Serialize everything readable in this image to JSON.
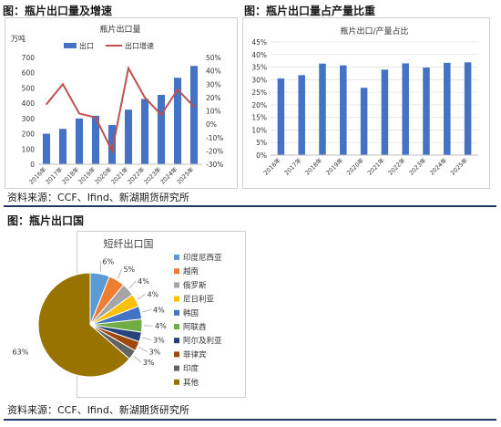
{
  "figures": [
    {
      "title": "图：瓶片出口量及增速",
      "source": "资料来源：CCF、Ifind、新湖期货研究所"
    },
    {
      "title": "图：瓶片出口量占产量比重"
    },
    {
      "title": "图：瓶片出口国",
      "source": "资料来源：CCF、Ifind、新湖期货研究所"
    }
  ],
  "colors": {
    "bar": "#4472c4",
    "line": "#c0504d",
    "rule": "#1f3864"
  },
  "chart_data": [
    {
      "type": "bar",
      "title": "瓶片出口量",
      "ylabel": "万吨",
      "categories": [
        "2016年",
        "2017年",
        "2018年",
        "2019年",
        "2020年",
        "2021年",
        "2022年",
        "2023年",
        "2024年",
        "2025年"
      ],
      "ylim": [
        0,
        700
      ],
      "yticks": [
        "0",
        "100",
        "200",
        "300",
        "400",
        "500",
        "600",
        "700"
      ],
      "y2lim": [
        -30,
        50
      ],
      "y2ticks": [
        "-30%",
        "-20%",
        "-10%",
        "0%",
        "10%",
        "20%",
        "30%",
        "40%",
        "50%"
      ],
      "legend_position": "top",
      "grid": false,
      "series": [
        {
          "name": "出口",
          "kind": "bar",
          "axis": "left",
          "values": [
            200,
            232,
            300,
            318,
            257,
            358,
            428,
            455,
            567,
            645
          ]
        },
        {
          "name": "出口增速",
          "kind": "line",
          "axis": "right",
          "values": [
            15,
            30,
            8,
            5,
            -20,
            42,
            20,
            7,
            26,
            13
          ]
        }
      ]
    },
    {
      "type": "bar",
      "title": "瓶片出口/产量占比",
      "categories": [
        "2016年",
        "2017年",
        "2018年",
        "2019年",
        "2020年",
        "2021年",
        "2022年",
        "2023年",
        "2024年",
        "2025年"
      ],
      "ylim": [
        0,
        45
      ],
      "yticks": [
        "0%",
        "5%",
        "10%",
        "15%",
        "20%",
        "25%",
        "30%",
        "35%",
        "40%",
        "45%"
      ],
      "grid": true,
      "series": [
        {
          "values": [
            30.5,
            31.8,
            36.4,
            35.7,
            26.8,
            34.0,
            36.5,
            34.8,
            36.7,
            36.9
          ]
        }
      ]
    },
    {
      "type": "pie",
      "title": "短纤出口国",
      "legend_position": "right",
      "slices": [
        {
          "label": "印度尼西亚",
          "value": 6,
          "text": "6%",
          "color": "#5b9bd5"
        },
        {
          "label": "越南",
          "value": 5,
          "text": "5%",
          "color": "#ed7d31"
        },
        {
          "label": "俄罗斯",
          "value": 4,
          "text": "4%",
          "color": "#a5a5a5"
        },
        {
          "label": "尼日利亚",
          "value": 4,
          "text": "4%",
          "color": "#ffc000"
        },
        {
          "label": "韩国",
          "value": 4,
          "text": "4%",
          "color": "#4472c4"
        },
        {
          "label": "阿联酋",
          "value": 4,
          "text": "4%",
          "color": "#70ad47"
        },
        {
          "label": "阿尔及利亚",
          "value": 3,
          "text": "3%",
          "color": "#264478"
        },
        {
          "label": "菲律宾",
          "value": 3,
          "text": "3%",
          "color": "#9e480e"
        },
        {
          "label": "印度",
          "value": 3,
          "text": "3%",
          "color": "#636363"
        },
        {
          "label": "其他",
          "value": 63,
          "text": "63%",
          "color": "#997300"
        }
      ]
    }
  ]
}
